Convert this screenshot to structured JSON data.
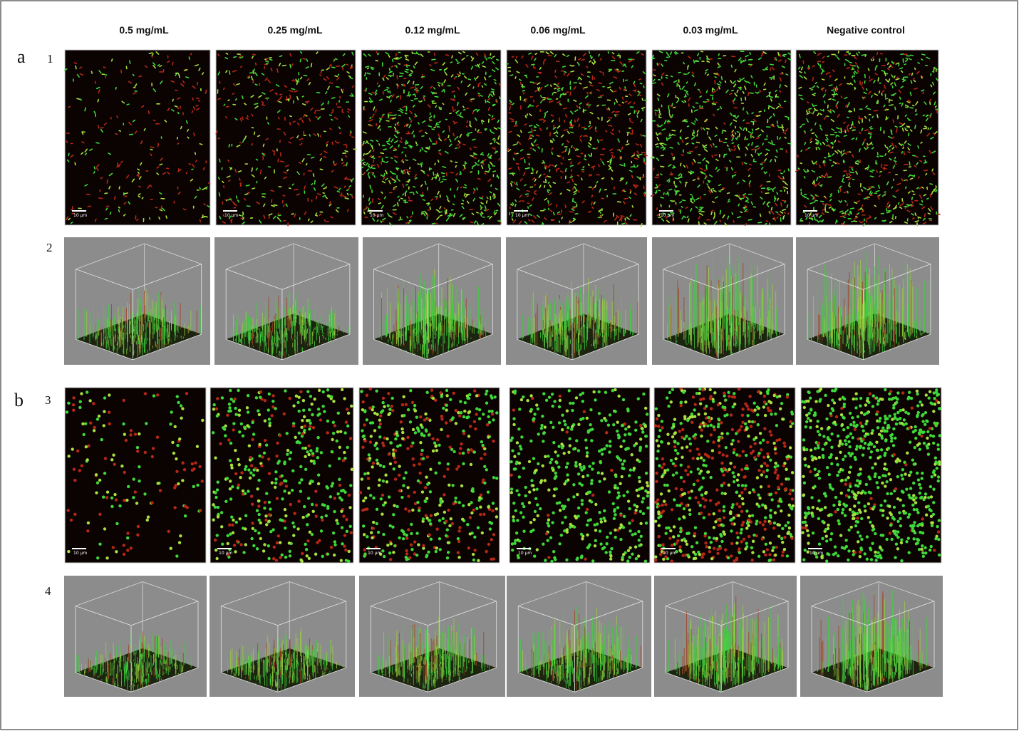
{
  "column_headers": [
    "0.5 mg/mL",
    "0.25 mg/mL",
    "0.12 mg/mL",
    "0.06 mg/mL",
    "0.03 mg/mL",
    "Negative control"
  ],
  "panel_groups": [
    {
      "label": "a",
      "rows": [
        {
          "label": "1",
          "scale_bars": [
            "10 µm",
            "10 µm",
            "10 µm",
            "10 µm",
            "10 µm",
            "10 µm"
          ]
        },
        {
          "label": "2"
        }
      ]
    },
    {
      "label": "b",
      "rows": [
        {
          "label": "3",
          "scale_bars": [
            "10 µm",
            "10 µm",
            "10 µm",
            "10 µm",
            "10 µm",
            "10 µm"
          ]
        },
        {
          "label": "4"
        }
      ]
    }
  ]
}
